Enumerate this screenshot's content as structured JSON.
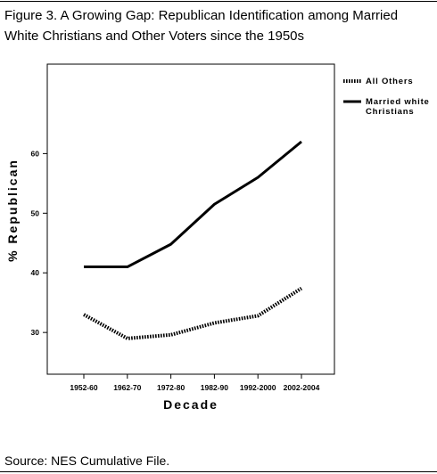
{
  "figure": {
    "caption": "Figure 3. A Growing Gap: Republican Identification among Married White Christians and Other Voters since the 1950s",
    "source": "Source: NES Cumulative File."
  },
  "chart_data": {
    "type": "line",
    "title": "",
    "xlabel": "Decade",
    "ylabel": "% Republican",
    "categories": [
      "1952-60",
      "1962-70",
      "1972-80",
      "1982-90",
      "1992-2000",
      "2002-2004"
    ],
    "ylim": [
      23,
      75
    ],
    "yticks": [
      30,
      40,
      50,
      60
    ],
    "grid": false,
    "legend_position": "top-right",
    "series": [
      {
        "name": "All Others",
        "style": "dotted",
        "color": "#000000",
        "values": [
          33,
          29,
          29.6,
          31.6,
          32.8,
          37.4
        ]
      },
      {
        "name": "Married white Christians",
        "style": "solid",
        "color": "#000000",
        "values": [
          41,
          41,
          44.8,
          51.5,
          56,
          62
        ]
      }
    ]
  }
}
